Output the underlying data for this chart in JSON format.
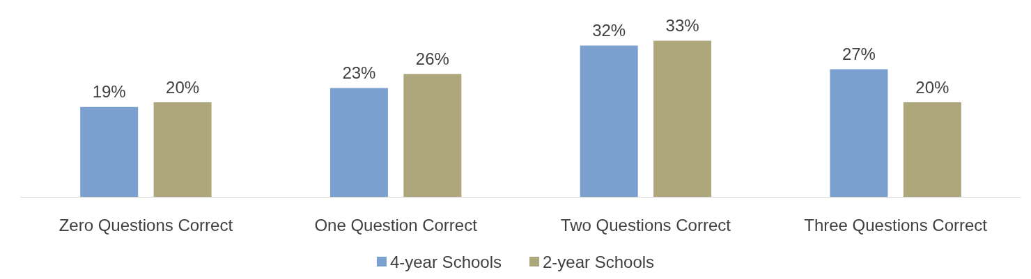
{
  "chart_data": {
    "type": "bar",
    "categories": [
      "Zero Questions Correct",
      "One Question Correct",
      "Two Questions Correct",
      "Three Questions Correct"
    ],
    "series": [
      {
        "name": "4-year Schools",
        "color": "#7ba0cf",
        "values": [
          19,
          23,
          32,
          27
        ],
        "value_labels": [
          "19%",
          "23%",
          "32%",
          "27%"
        ]
      },
      {
        "name": "2-year Schools",
        "color": "#afa77c",
        "values": [
          20,
          26,
          33,
          20
        ],
        "value_labels": [
          "20%",
          "26%",
          "33%",
          "20%"
        ]
      }
    ],
    "legend": "bottom"
  }
}
